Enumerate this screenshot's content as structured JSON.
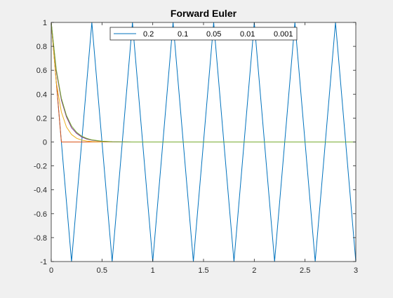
{
  "chart_data": {
    "type": "line",
    "title": "Forward Euler",
    "xlabel": "",
    "ylabel": "",
    "xlim": [
      0,
      3
    ],
    "ylim": [
      -1,
      1
    ],
    "xticks": [
      0,
      0.5,
      1,
      1.5,
      2,
      2.5,
      3
    ],
    "yticks": [
      -1,
      -0.8,
      -0.6,
      -0.4,
      -0.2,
      0,
      0.2,
      0.4,
      0.6,
      0.8,
      1
    ],
    "xtick_labels": [
      "0",
      "0.5",
      "1",
      "1.5",
      "2",
      "2.5",
      "3"
    ],
    "ytick_labels": [
      "-1",
      "-0.8",
      "-0.6",
      "-0.4",
      "-0.2",
      "0",
      "0.2",
      "0.4",
      "0.6",
      "0.8",
      "1"
    ],
    "grid": false,
    "legend_position": "top",
    "legend_orientation": "horizontal",
    "series": [
      {
        "name": "0.2",
        "color": "#0072BD",
        "x": [
          0,
          0.2,
          0.4,
          0.6,
          0.8,
          1.0,
          1.2,
          1.4,
          1.6,
          1.8,
          2.0,
          2.2,
          2.4,
          2.6,
          2.8,
          3.0
        ],
        "y": [
          1,
          -1,
          1,
          -1,
          1,
          -1,
          1,
          -1,
          1,
          -1,
          1,
          -1,
          1,
          -1,
          1,
          -1
        ]
      },
      {
        "name": "0.1",
        "color": "#D95319",
        "x": [
          0,
          0.1,
          0.2,
          0.3,
          0.5,
          1.0,
          1.5,
          2.0,
          2.5,
          3.0
        ],
        "y": [
          1,
          0,
          0,
          0,
          0,
          0,
          0,
          0,
          0,
          0
        ]
      },
      {
        "name": "0.05",
        "color": "#EDB120",
        "x": [
          0,
          0.05,
          0.1,
          0.15,
          0.2,
          0.25,
          0.3,
          0.35,
          0.4,
          0.45,
          0.5,
          0.6,
          0.7,
          1.0,
          2.0,
          3.0
        ],
        "y": [
          1,
          0.5,
          0.25,
          0.125,
          0.0625,
          0.0313,
          0.0156,
          0.0078,
          0.0039,
          0.002,
          0.001,
          0.0002,
          0,
          0,
          0,
          0
        ]
      },
      {
        "name": "0.01",
        "color": "#7E2F8E",
        "x": [
          0,
          0.05,
          0.1,
          0.15,
          0.2,
          0.25,
          0.3,
          0.35,
          0.4,
          0.5,
          0.6,
          0.7,
          0.8,
          1.0,
          2.0,
          3.0
        ],
        "y": [
          1,
          0.59,
          0.35,
          0.21,
          0.12,
          0.072,
          0.042,
          0.025,
          0.015,
          0.005,
          0.0018,
          0.0006,
          0.0002,
          0,
          0,
          0
        ]
      },
      {
        "name": "0.001",
        "color": "#77AC30",
        "x": [
          0,
          0.05,
          0.1,
          0.15,
          0.2,
          0.25,
          0.3,
          0.35,
          0.4,
          0.5,
          0.6,
          0.7,
          0.8,
          1.0,
          2.0,
          3.0
        ],
        "y": [
          1,
          0.605,
          0.366,
          0.222,
          0.134,
          0.081,
          0.049,
          0.03,
          0.018,
          0.0066,
          0.0024,
          0.0009,
          0.0003,
          0,
          0,
          0
        ]
      }
    ]
  }
}
